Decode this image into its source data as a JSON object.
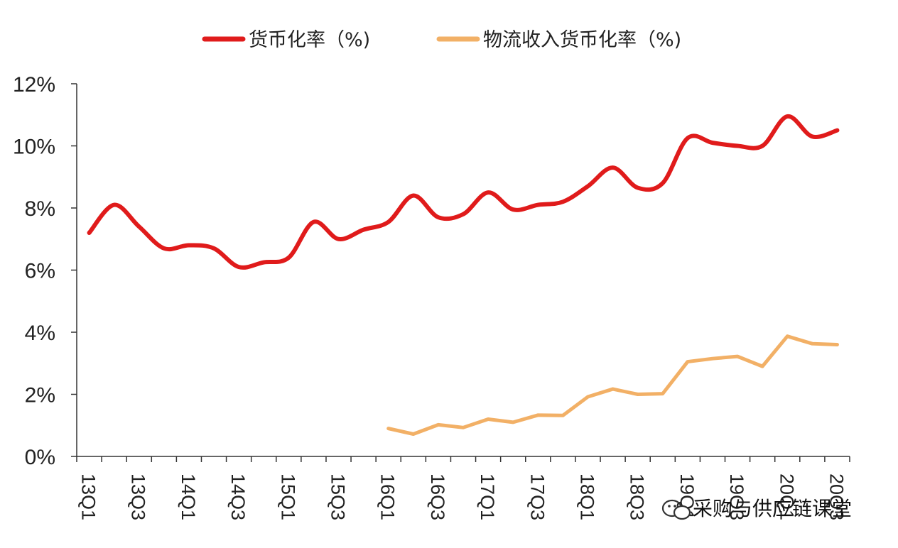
{
  "chart_data": {
    "type": "line",
    "title": "",
    "xlabel": "",
    "ylabel": "",
    "ylim": [
      0,
      12
    ],
    "yticks": [
      "0%",
      "2%",
      "4%",
      "6%",
      "8%",
      "10%",
      "12%"
    ],
    "categories": [
      "13Q1",
      "13Q2",
      "13Q3",
      "13Q4",
      "14Q1",
      "14Q2",
      "14Q3",
      "14Q4",
      "15Q1",
      "15Q2",
      "15Q3",
      "15Q4",
      "16Q1",
      "16Q2",
      "16Q3",
      "16Q4",
      "17Q1",
      "17Q2",
      "17Q3",
      "17Q4",
      "18Q1",
      "18Q2",
      "18Q3",
      "18Q4",
      "19Q1",
      "19Q2",
      "19Q3",
      "19Q4",
      "20Q1",
      "20Q2",
      "20Q3"
    ],
    "xtick_labels": [
      "13Q1",
      "13Q3",
      "14Q1",
      "14Q3",
      "15Q1",
      "15Q3",
      "16Q1",
      "16Q3",
      "17Q1",
      "17Q3",
      "18Q1",
      "18Q3",
      "19Q1",
      "19Q3",
      "20Q1",
      "20Q3"
    ],
    "legend_position": "top",
    "grid": false,
    "series": [
      {
        "name": "货币化率（%)",
        "color": "#e01b1b",
        "values": [
          7.2,
          8.1,
          7.4,
          6.7,
          6.8,
          6.7,
          6.1,
          6.25,
          6.4,
          7.55,
          7.0,
          7.3,
          7.55,
          8.4,
          7.7,
          7.8,
          8.5,
          7.95,
          8.1,
          8.2,
          8.7,
          9.3,
          8.65,
          8.8,
          10.25,
          10.1,
          10.0,
          10.0,
          10.95,
          10.3,
          10.5
        ]
      },
      {
        "name": "物流收入货币化率（%)",
        "color": "#f2b066",
        "values": [
          null,
          null,
          null,
          null,
          null,
          null,
          null,
          null,
          null,
          null,
          null,
          null,
          0.9,
          0.72,
          1.02,
          0.93,
          1.2,
          1.1,
          1.33,
          1.32,
          1.92,
          2.17,
          2.0,
          2.02,
          3.05,
          3.15,
          3.22,
          2.9,
          3.87,
          3.63,
          3.6
        ]
      }
    ]
  },
  "watermark": {
    "icon": "wechat-icon",
    "text": "采购与供应链课堂"
  }
}
